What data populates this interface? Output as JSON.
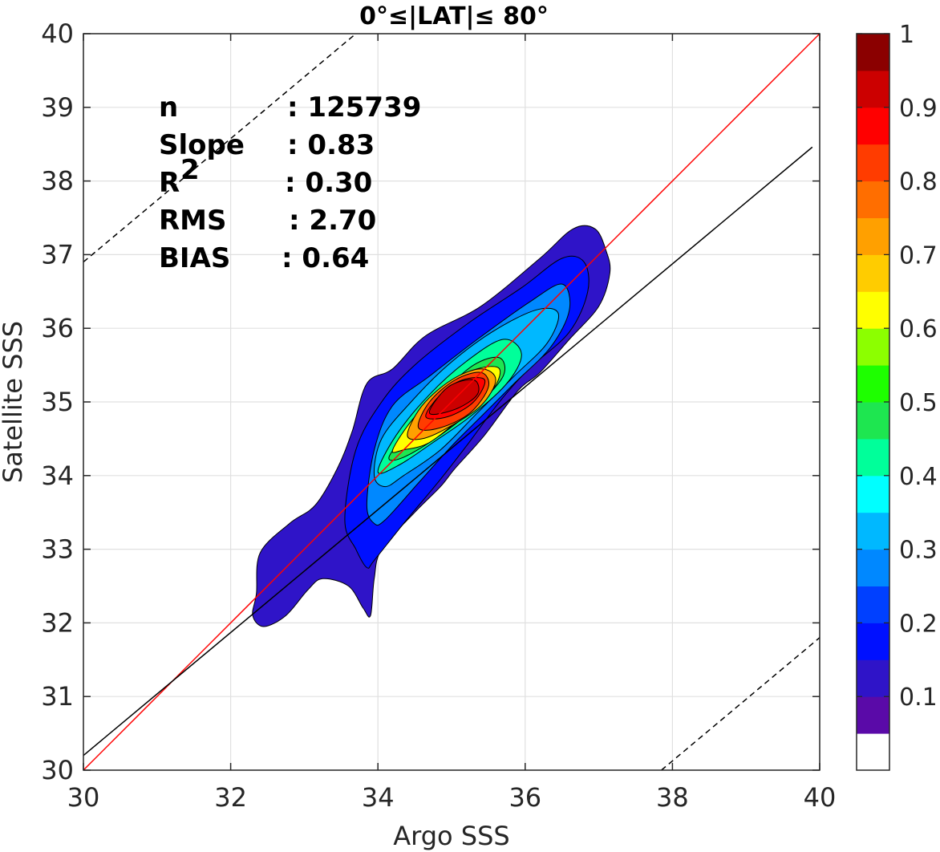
{
  "chart_data": {
    "type": "contour",
    "title": "0°≤|LAT|≤ 80°",
    "xlabel": "Argo SSS",
    "ylabel": "Satellite SSS",
    "xlim": [
      30,
      40
    ],
    "ylim": [
      30,
      40
    ],
    "xticks": [
      30,
      32,
      34,
      36,
      38,
      40
    ],
    "yticks": [
      30,
      31,
      32,
      33,
      34,
      35,
      36,
      37,
      38,
      39,
      40
    ],
    "grid": true,
    "stats": [
      {
        "label": "n",
        "value": ": 125739"
      },
      {
        "label": "Slope",
        "value": ": 0.83"
      },
      {
        "label": "R",
        "sup": "2",
        "value": ": 0.30"
      },
      {
        "label": "RMS",
        "value": ": 2.70"
      },
      {
        "label": "BIAS",
        "value": ": 0.64"
      }
    ],
    "lines": [
      {
        "name": "1:1 line",
        "color": "#ff0000",
        "style": "solid",
        "x": [
          30,
          40
        ],
        "y": [
          30,
          40
        ]
      },
      {
        "name": "regression",
        "color": "#000000",
        "style": "solid",
        "x": [
          30,
          39.9
        ],
        "y": [
          30.2,
          38.46
        ]
      },
      {
        "name": "upper bound",
        "color": "#000000",
        "style": "dashed",
        "x": [
          30,
          33.7
        ],
        "y": [
          36.9,
          40
        ]
      },
      {
        "name": "lower bound",
        "color": "#000000",
        "style": "dashed",
        "x": [
          37.85,
          40
        ],
        "y": [
          30,
          31.8
        ]
      }
    ],
    "density_peak": {
      "x": 35.05,
      "y": 35.05,
      "value": 0.95
    },
    "contour_levels": [
      0.05,
      0.1,
      0.15,
      0.2,
      0.25,
      0.3,
      0.35,
      0.4,
      0.45,
      0.5,
      0.55,
      0.6,
      0.65,
      0.7,
      0.75,
      0.8,
      0.85,
      0.9,
      0.95
    ],
    "contours": [
      {
        "level": 0.05,
        "points": [
          [
            32.35,
            32.4
          ],
          [
            32.4,
            32.95
          ],
          [
            32.8,
            33.35
          ],
          [
            33.15,
            33.6
          ],
          [
            33.45,
            34.1
          ],
          [
            33.65,
            34.6
          ],
          [
            33.85,
            35.25
          ],
          [
            34.2,
            35.45
          ],
          [
            34.65,
            35.9
          ],
          [
            35.4,
            36.3
          ],
          [
            36.2,
            36.95
          ],
          [
            36.65,
            37.35
          ],
          [
            36.95,
            37.35
          ],
          [
            37.1,
            37.05
          ],
          [
            37.15,
            36.75
          ],
          [
            37.0,
            36.3
          ],
          [
            36.6,
            35.85
          ],
          [
            36.2,
            35.4
          ],
          [
            35.9,
            35.15
          ],
          [
            35.45,
            34.55
          ],
          [
            35.05,
            34.1
          ],
          [
            34.85,
            33.85
          ],
          [
            34.5,
            33.5
          ],
          [
            34.05,
            33.0
          ],
          [
            33.95,
            32.6
          ],
          [
            33.9,
            32.1
          ],
          [
            33.8,
            32.2
          ],
          [
            33.6,
            32.5
          ],
          [
            33.25,
            32.6
          ],
          [
            33.05,
            32.45
          ],
          [
            32.75,
            32.1
          ],
          [
            32.45,
            31.95
          ],
          [
            32.3,
            32.1
          ]
        ]
      },
      {
        "level": 0.1,
        "points": [
          [
            33.55,
            33.4
          ],
          [
            33.7,
            34.35
          ],
          [
            34.05,
            35.0
          ],
          [
            34.5,
            35.5
          ],
          [
            35.2,
            36.05
          ],
          [
            35.95,
            36.55
          ],
          [
            36.5,
            36.95
          ],
          [
            36.8,
            36.9
          ],
          [
            36.85,
            36.5
          ],
          [
            36.6,
            35.95
          ],
          [
            36.05,
            35.45
          ],
          [
            35.65,
            35.0
          ],
          [
            35.2,
            34.4
          ],
          [
            34.85,
            33.95
          ],
          [
            34.35,
            33.35
          ],
          [
            33.95,
            32.85
          ],
          [
            33.85,
            32.75
          ],
          [
            33.7,
            33.0
          ]
        ]
      },
      {
        "level": 0.15,
        "points": [
          [
            33.85,
            33.6
          ],
          [
            33.95,
            34.35
          ],
          [
            34.2,
            34.95
          ],
          [
            34.7,
            35.35
          ],
          [
            35.35,
            35.85
          ],
          [
            36.05,
            36.35
          ],
          [
            36.5,
            36.6
          ],
          [
            36.6,
            36.25
          ],
          [
            36.35,
            35.75
          ],
          [
            35.85,
            35.25
          ],
          [
            35.4,
            34.8
          ],
          [
            35.0,
            34.4
          ],
          [
            34.55,
            33.9
          ],
          [
            34.1,
            33.4
          ],
          [
            33.95,
            33.35
          ]
        ]
      },
      {
        "level": 0.3,
        "points": [
          [
            33.95,
            34.0
          ],
          [
            34.05,
            34.5
          ],
          [
            34.45,
            35.0
          ],
          [
            34.95,
            35.5
          ],
          [
            35.55,
            35.95
          ],
          [
            36.15,
            36.25
          ],
          [
            36.45,
            36.2
          ],
          [
            36.3,
            35.8
          ],
          [
            35.85,
            35.35
          ],
          [
            35.35,
            34.85
          ],
          [
            34.85,
            34.35
          ],
          [
            34.35,
            34.0
          ],
          [
            34.1,
            33.85
          ]
        ]
      },
      {
        "level": 0.45,
        "points": [
          [
            34.0,
            34.05
          ],
          [
            34.25,
            34.55
          ],
          [
            34.7,
            35.1
          ],
          [
            35.2,
            35.55
          ],
          [
            35.7,
            35.85
          ],
          [
            35.95,
            35.65
          ],
          [
            35.75,
            35.25
          ],
          [
            35.25,
            34.8
          ],
          [
            34.75,
            34.45
          ],
          [
            34.3,
            34.15
          ]
        ]
      },
      {
        "level": 0.55,
        "points": [
          [
            34.15,
            34.25
          ],
          [
            34.45,
            34.65
          ],
          [
            34.85,
            35.1
          ],
          [
            35.3,
            35.5
          ],
          [
            35.65,
            35.6
          ],
          [
            35.7,
            35.35
          ],
          [
            35.35,
            34.95
          ],
          [
            34.85,
            34.55
          ],
          [
            34.35,
            34.25
          ]
        ]
      },
      {
        "level": 0.65,
        "points": [
          [
            34.2,
            34.35
          ],
          [
            34.5,
            34.8
          ],
          [
            34.95,
            35.25
          ],
          [
            35.35,
            35.45
          ],
          [
            35.65,
            35.45
          ],
          [
            35.55,
            35.15
          ],
          [
            35.15,
            34.8
          ],
          [
            34.7,
            34.45
          ],
          [
            34.35,
            34.35
          ]
        ]
      },
      {
        "level": 0.7,
        "points": [
          [
            34.4,
            34.55
          ],
          [
            34.6,
            34.95
          ],
          [
            35.0,
            35.3
          ],
          [
            35.4,
            35.45
          ],
          [
            35.6,
            35.3
          ],
          [
            35.4,
            34.95
          ],
          [
            34.95,
            34.65
          ],
          [
            34.6,
            34.5
          ]
        ]
      },
      {
        "level": 0.8,
        "points": [
          [
            34.55,
            34.65
          ],
          [
            34.7,
            35.0
          ],
          [
            35.05,
            35.3
          ],
          [
            35.4,
            35.4
          ],
          [
            35.5,
            35.2
          ],
          [
            35.25,
            34.85
          ],
          [
            34.85,
            34.65
          ]
        ]
      },
      {
        "level": 0.85,
        "points": [
          [
            34.65,
            34.8
          ],
          [
            34.85,
            35.1
          ],
          [
            35.15,
            35.3
          ],
          [
            35.45,
            35.3
          ],
          [
            35.3,
            35.0
          ],
          [
            34.95,
            34.8
          ]
        ]
      },
      {
        "level": 0.9,
        "points": [
          [
            34.7,
            34.85
          ],
          [
            34.95,
            35.2
          ],
          [
            35.3,
            35.3
          ],
          [
            35.35,
            35.1
          ],
          [
            35.05,
            34.9
          ]
        ]
      }
    ],
    "colorbar": {
      "ticks": [
        "0.1",
        "0.2",
        "0.3",
        "0.4",
        "0.5",
        "0.6",
        "0.7",
        "0.8",
        "0.9",
        "1"
      ],
      "tick_values": [
        0.1,
        0.2,
        0.3,
        0.4,
        0.5,
        0.6,
        0.7,
        0.8,
        0.9,
        1.0
      ],
      "range": [
        0,
        1
      ],
      "colors": [
        "#ffffff",
        "#5a0aa8",
        "#2f14c8",
        "#0010ff",
        "#0040ff",
        "#0088ff",
        "#00b8ff",
        "#00ffff",
        "#00ff9a",
        "#1ee650",
        "#1eff00",
        "#8cff00",
        "#ffff00",
        "#ffcc00",
        "#ffa000",
        "#ff6e00",
        "#ff3c00",
        "#ff0000",
        "#cc0000",
        "#8b0000"
      ]
    },
    "level_colors": {
      "0.05": "#2f14c8",
      "0.1": "#0010ff",
      "0.15": "#0088ff",
      "0.3": "#00b8ff",
      "0.45": "#00ff9a",
      "0.55": "#1ee650",
      "0.65": "#ffff00",
      "0.7": "#ffa000",
      "0.8": "#ff3c00",
      "0.85": "#ff0000",
      "0.9": "#cc0000"
    }
  }
}
